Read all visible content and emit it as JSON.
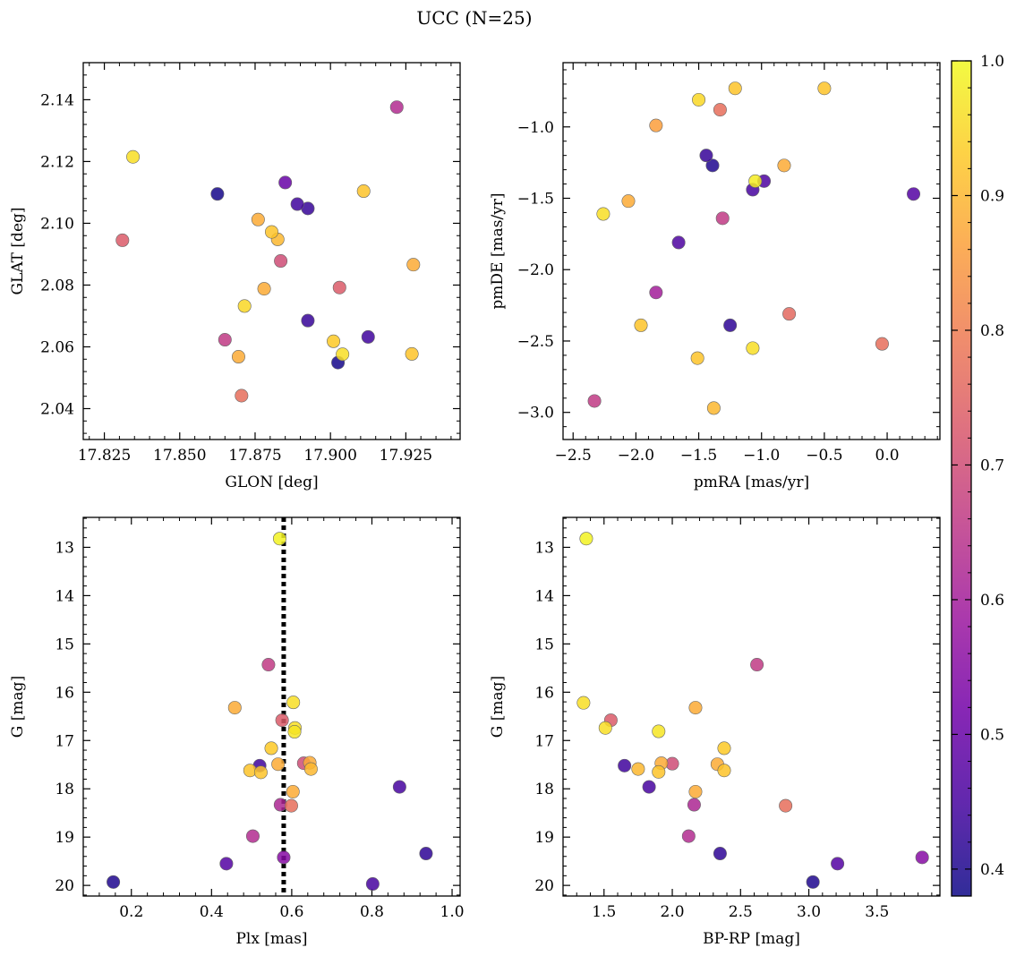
{
  "figure": {
    "title": "UCC (N=25)"
  },
  "colorbar": {
    "range": [
      0.38,
      1.0
    ],
    "ticks": [
      "0.4",
      "0.5",
      "0.6",
      "0.7",
      "0.8",
      "0.9",
      "1.0"
    ],
    "colormap": [
      "#0d0887",
      "#46039f",
      "#7201a8",
      "#9c179e",
      "#bd3786",
      "#d8576b",
      "#ed7953",
      "#fb9f3a",
      "#fdca26",
      "#f0f921"
    ]
  },
  "chart_data": [
    {
      "type": "scatter",
      "xlabel": "GLON [deg]",
      "ylabel": "GLAT [deg]",
      "xlim": [
        17.818,
        17.943
      ],
      "ylim": [
        2.03,
        2.152
      ],
      "xticks": [
        "17.825",
        "17.850",
        "17.875",
        "17.900",
        "17.925"
      ],
      "yticks": [
        "2.04",
        "2.06",
        "2.08",
        "2.10",
        "2.12",
        "2.14"
      ],
      "points": [
        {
          "x": 17.8345,
          "y": 2.1215,
          "c": 0.96
        },
        {
          "x": 17.831,
          "y": 2.0945,
          "c": 0.73
        },
        {
          "x": 17.8625,
          "y": 2.1095,
          "c": 0.39
        },
        {
          "x": 17.865,
          "y": 2.0623,
          "c": 0.66
        },
        {
          "x": 17.8695,
          "y": 2.0568,
          "c": 0.88
        },
        {
          "x": 17.8705,
          "y": 2.0442,
          "c": 0.77
        },
        {
          "x": 17.8715,
          "y": 2.0732,
          "c": 0.95
        },
        {
          "x": 17.876,
          "y": 2.1012,
          "c": 0.88
        },
        {
          "x": 17.878,
          "y": 2.0788,
          "c": 0.88
        },
        {
          "x": 17.8805,
          "y": 2.0972,
          "c": 0.92
        },
        {
          "x": 17.8825,
          "y": 2.0948,
          "c": 0.9
        },
        {
          "x": 17.8835,
          "y": 2.0878,
          "c": 0.7
        },
        {
          "x": 17.885,
          "y": 2.1132,
          "c": 0.5
        },
        {
          "x": 17.889,
          "y": 2.1062,
          "c": 0.44
        },
        {
          "x": 17.8925,
          "y": 2.1048,
          "c": 0.43
        },
        {
          "x": 17.8925,
          "y": 2.0685,
          "c": 0.43
        },
        {
          "x": 17.901,
          "y": 2.0618,
          "c": 0.93
        },
        {
          "x": 17.9025,
          "y": 2.0549,
          "c": 0.39
        },
        {
          "x": 17.903,
          "y": 2.0792,
          "c": 0.73
        },
        {
          "x": 17.904,
          "y": 2.0576,
          "c": 0.96
        },
        {
          "x": 17.911,
          "y": 2.1104,
          "c": 0.92
        },
        {
          "x": 17.9125,
          "y": 2.0632,
          "c": 0.44
        },
        {
          "x": 17.922,
          "y": 2.1376,
          "c": 0.63
        },
        {
          "x": 17.927,
          "y": 2.0577,
          "c": 0.92
        },
        {
          "x": 17.9275,
          "y": 2.0866,
          "c": 0.88
        }
      ]
    },
    {
      "type": "scatter",
      "xlabel": "pmRA [mas/yr]",
      "ylabel": "pmDE [mas/yr]",
      "xlim": [
        -2.58,
        0.42
      ],
      "ylim": [
        -3.19,
        -0.55
      ],
      "xticks": [
        "−2.5",
        "−2.0",
        "−1.5",
        "−1.0",
        "−0.5",
        "0.0"
      ],
      "yticks": [
        "−3.0",
        "−2.5",
        "−2.0",
        "−1.5",
        "−1.0"
      ],
      "points": [
        {
          "x": -2.33,
          "y": -2.92,
          "c": 0.66
        },
        {
          "x": -2.26,
          "y": -1.61,
          "c": 0.96
        },
        {
          "x": -2.06,
          "y": -1.52,
          "c": 0.88
        },
        {
          "x": -1.96,
          "y": -2.39,
          "c": 0.92
        },
        {
          "x": -1.84,
          "y": -0.99,
          "c": 0.86
        },
        {
          "x": -1.84,
          "y": -2.16,
          "c": 0.6
        },
        {
          "x": -1.66,
          "y": -1.81,
          "c": 0.46
        },
        {
          "x": -1.5,
          "y": -0.81,
          "c": 0.95
        },
        {
          "x": -1.51,
          "y": -2.62,
          "c": 0.92
        },
        {
          "x": -1.44,
          "y": -1.2,
          "c": 0.43
        },
        {
          "x": -1.39,
          "y": -1.27,
          "c": 0.4
        },
        {
          "x": -1.38,
          "y": -2.97,
          "c": 0.9
        },
        {
          "x": -1.33,
          "y": -0.88,
          "c": 0.77
        },
        {
          "x": -1.31,
          "y": -1.64,
          "c": 0.66
        },
        {
          "x": -1.25,
          "y": -2.39,
          "c": 0.42
        },
        {
          "x": -1.21,
          "y": -0.73,
          "c": 0.92
        },
        {
          "x": -1.07,
          "y": -1.44,
          "c": 0.45
        },
        {
          "x": -1.07,
          "y": -2.55,
          "c": 0.96
        },
        {
          "x": -1.05,
          "y": -1.38,
          "c": 0.98
        },
        {
          "x": -0.98,
          "y": -1.38,
          "c": 0.46
        },
        {
          "x": -0.82,
          "y": -1.27,
          "c": 0.88
        },
        {
          "x": -0.78,
          "y": -2.31,
          "c": 0.76
        },
        {
          "x": -0.5,
          "y": -0.73,
          "c": 0.92
        },
        {
          "x": -0.04,
          "y": -2.52,
          "c": 0.77
        },
        {
          "x": 0.21,
          "y": -1.47,
          "c": 0.47
        }
      ]
    },
    {
      "type": "scatter",
      "xlabel": "Plx [mas]",
      "ylabel": "G [mag]",
      "xlim": [
        0.08,
        1.02
      ],
      "ylim": [
        20.22,
        12.38
      ],
      "y_inverted": true,
      "xticks": [
        "0.2",
        "0.4",
        "0.6",
        "0.8",
        "1.0"
      ],
      "yticks": [
        "13",
        "14",
        "15",
        "16",
        "17",
        "18",
        "19",
        "20"
      ],
      "vline": {
        "x": 0.58,
        "style": "dotted"
      },
      "points": [
        {
          "x": 0.57,
          "y": 12.82,
          "c": 0.99
        },
        {
          "x": 0.542,
          "y": 15.43,
          "c": 0.66
        },
        {
          "x": 0.604,
          "y": 16.21,
          "c": 0.96
        },
        {
          "x": 0.458,
          "y": 16.32,
          "c": 0.88
        },
        {
          "x": 0.576,
          "y": 16.58,
          "c": 0.73
        },
        {
          "x": 0.608,
          "y": 16.74,
          "c": 0.96
        },
        {
          "x": 0.607,
          "y": 16.82,
          "c": 0.97
        },
        {
          "x": 0.549,
          "y": 17.16,
          "c": 0.93
        },
        {
          "x": 0.63,
          "y": 17.47,
          "c": 0.7
        },
        {
          "x": 0.645,
          "y": 17.46,
          "c": 0.88
        },
        {
          "x": 0.566,
          "y": 17.49,
          "c": 0.88
        },
        {
          "x": 0.52,
          "y": 17.52,
          "c": 0.44
        },
        {
          "x": 0.496,
          "y": 17.62,
          "c": 0.92
        },
        {
          "x": 0.523,
          "y": 17.66,
          "c": 0.92
        },
        {
          "x": 0.648,
          "y": 17.59,
          "c": 0.9
        },
        {
          "x": 0.603,
          "y": 18.06,
          "c": 0.88
        },
        {
          "x": 0.869,
          "y": 17.96,
          "c": 0.45
        },
        {
          "x": 0.572,
          "y": 18.33,
          "c": 0.62
        },
        {
          "x": 0.599,
          "y": 18.35,
          "c": 0.77
        },
        {
          "x": 0.503,
          "y": 18.98,
          "c": 0.63
        },
        {
          "x": 0.935,
          "y": 19.34,
          "c": 0.42
        },
        {
          "x": 0.58,
          "y": 19.42,
          "c": 0.55
        },
        {
          "x": 0.437,
          "y": 19.55,
          "c": 0.47
        },
        {
          "x": 0.155,
          "y": 19.93,
          "c": 0.4
        },
        {
          "x": 0.802,
          "y": 19.97,
          "c": 0.45
        }
      ]
    },
    {
      "type": "scatter",
      "xlabel": "BP-RP [mag]",
      "ylabel": "G [mag]",
      "xlim": [
        1.2,
        3.96
      ],
      "ylim": [
        20.22,
        12.38
      ],
      "y_inverted": true,
      "xticks": [
        "1.5",
        "2.0",
        "2.5",
        "3.0",
        "3.5"
      ],
      "yticks": [
        "13",
        "14",
        "15",
        "16",
        "17",
        "18",
        "19",
        "20"
      ],
      "points": [
        {
          "x": 1.37,
          "y": 12.82,
          "c": 0.99
        },
        {
          "x": 1.35,
          "y": 16.22,
          "c": 0.96
        },
        {
          "x": 1.55,
          "y": 16.58,
          "c": 0.73
        },
        {
          "x": 1.51,
          "y": 16.74,
          "c": 0.96
        },
        {
          "x": 1.9,
          "y": 16.81,
          "c": 0.97
        },
        {
          "x": 2.17,
          "y": 16.32,
          "c": 0.88
        },
        {
          "x": 2.62,
          "y": 15.43,
          "c": 0.66
        },
        {
          "x": 2.38,
          "y": 17.16,
          "c": 0.93
        },
        {
          "x": 1.65,
          "y": 17.52,
          "c": 0.44
        },
        {
          "x": 1.75,
          "y": 17.59,
          "c": 0.9
        },
        {
          "x": 1.92,
          "y": 17.47,
          "c": 0.88
        },
        {
          "x": 1.9,
          "y": 17.65,
          "c": 0.92
        },
        {
          "x": 2.0,
          "y": 17.48,
          "c": 0.7
        },
        {
          "x": 2.33,
          "y": 17.49,
          "c": 0.88
        },
        {
          "x": 2.38,
          "y": 17.62,
          "c": 0.92
        },
        {
          "x": 1.83,
          "y": 17.96,
          "c": 0.45
        },
        {
          "x": 2.17,
          "y": 18.06,
          "c": 0.88
        },
        {
          "x": 2.16,
          "y": 18.33,
          "c": 0.62
        },
        {
          "x": 2.83,
          "y": 18.35,
          "c": 0.77
        },
        {
          "x": 2.12,
          "y": 18.98,
          "c": 0.63
        },
        {
          "x": 2.35,
          "y": 19.34,
          "c": 0.42
        },
        {
          "x": 3.83,
          "y": 19.42,
          "c": 0.55
        },
        {
          "x": 3.21,
          "y": 19.55,
          "c": 0.47
        },
        {
          "x": 3.03,
          "y": 19.93,
          "c": 0.4
        }
      ]
    }
  ]
}
